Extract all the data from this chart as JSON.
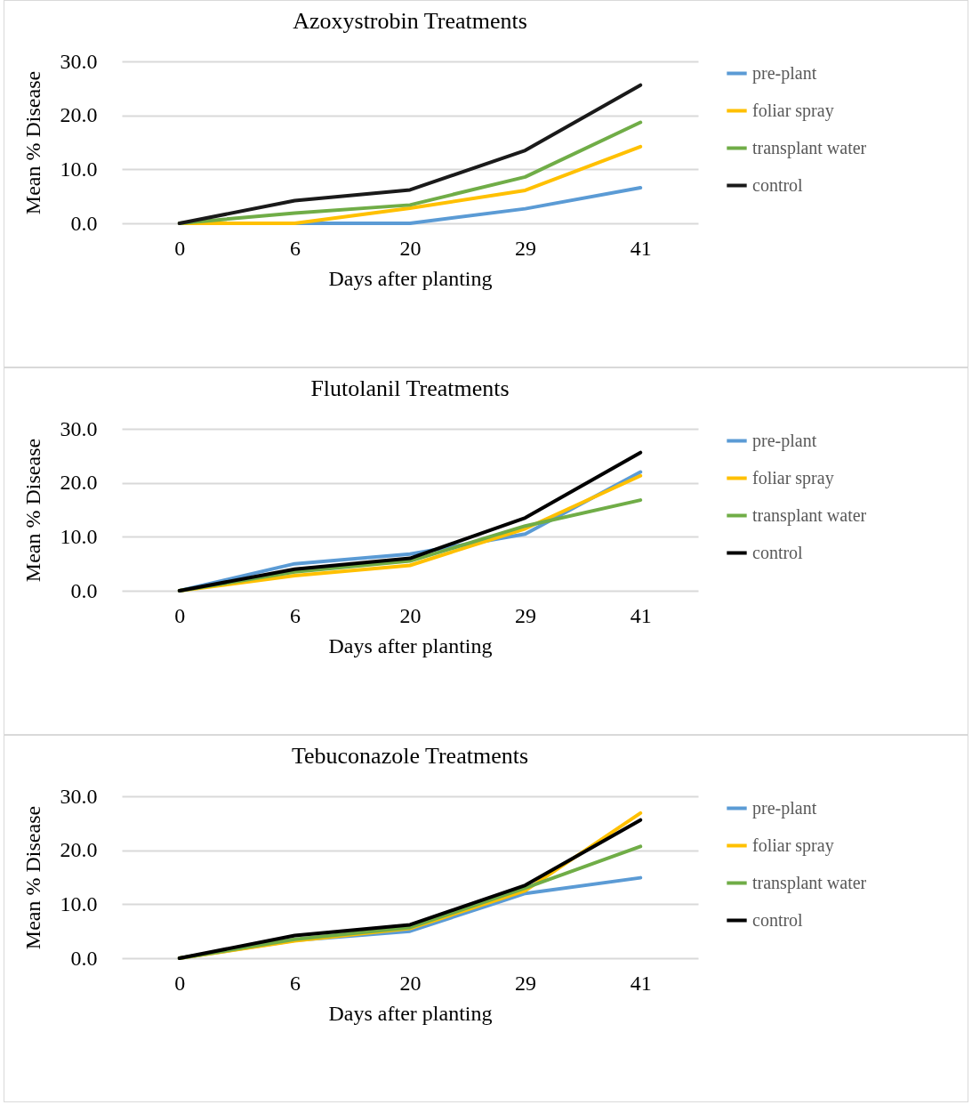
{
  "chart_data": [
    {
      "type": "line",
      "title": "Azoxystrobin Treatments",
      "xlabel": "Days after planting",
      "ylabel": "Mean % Disease",
      "categories": [
        "0",
        "6",
        "20",
        "29",
        "41"
      ],
      "ylim": [
        0,
        30
      ],
      "yticks": [
        {
          "value": 0,
          "label": "0.0"
        },
        {
          "value": 10,
          "label": "10.0"
        },
        {
          "value": 20,
          "label": "20.0"
        },
        {
          "value": 30,
          "label": "30.0"
        }
      ],
      "grid": "y",
      "legend": "right",
      "marker": "none",
      "series": [
        {
          "name": "pre-plant",
          "color": "#5b9bd5",
          "values": [
            0,
            0,
            0,
            2.7,
            6.6
          ]
        },
        {
          "name": "foliar spray",
          "color": "#ffc000",
          "values": [
            0,
            0,
            2.8,
            6.1,
            14.2
          ]
        },
        {
          "name": "transplant water",
          "color": "#70ad47",
          "values": [
            0,
            1.9,
            3.4,
            8.6,
            18.7
          ]
        },
        {
          "name": "control",
          "color": "#1a1a1a",
          "values": [
            0,
            4.2,
            6.2,
            13.5,
            25.6
          ]
        }
      ]
    },
    {
      "type": "line",
      "title": "Flutolanil Treatments",
      "xlabel": "Days after planting",
      "ylabel": "Mean % Disease",
      "categories": [
        "0",
        "6",
        "20",
        "29",
        "41"
      ],
      "ylim": [
        0,
        30
      ],
      "yticks": [
        {
          "value": 0,
          "label": "0.0"
        },
        {
          "value": 10,
          "label": "10.0"
        },
        {
          "value": 20,
          "label": "20.0"
        },
        {
          "value": 30,
          "label": "30.0"
        }
      ],
      "grid": "y",
      "legend": "right",
      "marker": "none",
      "series": [
        {
          "name": "pre-plant",
          "color": "#5b9bd5",
          "values": [
            0,
            5.0,
            6.8,
            10.5,
            22.0
          ]
        },
        {
          "name": "foliar spray",
          "color": "#ffc000",
          "values": [
            0,
            2.8,
            4.7,
            11.5,
            21.3
          ]
        },
        {
          "name": "transplant water",
          "color": "#70ad47",
          "values": [
            0,
            3.5,
            5.5,
            12.0,
            16.8
          ]
        },
        {
          "name": "control",
          "color": "#000000",
          "values": [
            0,
            4.0,
            6.0,
            13.5,
            25.6
          ]
        }
      ]
    },
    {
      "type": "line",
      "title": "Tebuconazole Treatments",
      "xlabel": "Days after planting",
      "ylabel": "Mean % Disease",
      "categories": [
        "0",
        "6",
        "20",
        "29",
        "41"
      ],
      "ylim": [
        0,
        30
      ],
      "yticks": [
        {
          "value": 0,
          "label": "0.0"
        },
        {
          "value": 10,
          "label": "10.0"
        },
        {
          "value": 20,
          "label": "20.0"
        },
        {
          "value": 30,
          "label": "30.0"
        }
      ],
      "grid": "y",
      "legend": "right",
      "marker": "none",
      "series": [
        {
          "name": "pre-plant",
          "color": "#5b9bd5",
          "values": [
            0,
            3.3,
            5.0,
            12.0,
            14.9
          ]
        },
        {
          "name": "foliar spray",
          "color": "#ffc000",
          "values": [
            0,
            3.2,
            5.5,
            12.5,
            26.9
          ]
        },
        {
          "name": "transplant water",
          "color": "#70ad47",
          "values": [
            0,
            3.5,
            5.7,
            13.0,
            20.7
          ]
        },
        {
          "name": "control",
          "color": "#000000",
          "values": [
            0,
            4.2,
            6.2,
            13.5,
            25.6
          ]
        }
      ]
    }
  ]
}
